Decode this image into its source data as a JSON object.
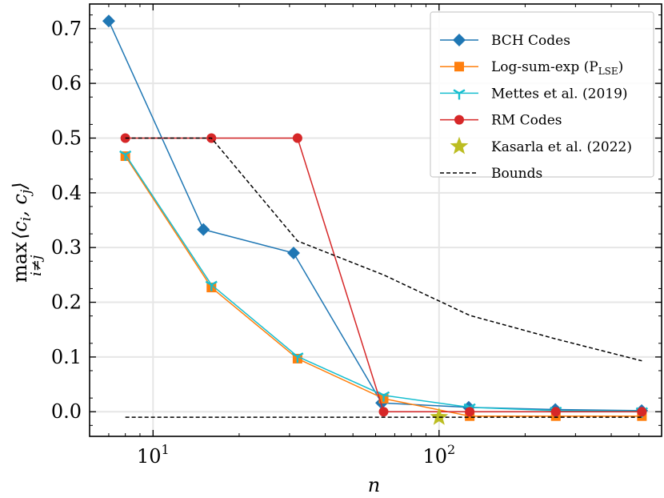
{
  "chart_data": {
    "type": "line",
    "xscale": "log",
    "xlim": [
      6,
      600
    ],
    "ylim": [
      -0.045,
      0.745
    ],
    "xlabel": "n",
    "ylabel": {
      "op": "max",
      "sub": "i≠j",
      "expr": "⟨c",
      "i": "i",
      "sep": ", c",
      "j": "j",
      "close": "⟩"
    },
    "yticks": [
      0.0,
      0.1,
      0.2,
      0.3,
      0.4,
      0.5,
      0.6,
      0.7
    ],
    "ytick_labels": [
      "0.0",
      "0.1",
      "0.2",
      "0.3",
      "0.4",
      "0.5",
      "0.6",
      "0.7"
    ],
    "xticks": [
      {
        "value": 10,
        "base": "10",
        "exp": "1"
      },
      {
        "value": 100,
        "base": "10",
        "exp": "2"
      }
    ],
    "grid": true,
    "legend_position": "top-right",
    "series": [
      {
        "name": "BCH Codes",
        "color": "#1f77b4",
        "marker": "diamond",
        "x": [
          7,
          15,
          31,
          63,
          127,
          255,
          511
        ],
        "y": [
          0.714,
          0.333,
          0.29,
          0.016,
          0.008,
          0.004,
          0.002
        ]
      },
      {
        "name": "Log-sum-exp (P",
        "name_sub": "LSE",
        "name_suffix": ")",
        "color": "#ff7f0e",
        "marker": "square",
        "x": [
          8,
          16,
          32,
          64,
          128,
          256,
          512
        ],
        "y": [
          0.467,
          0.227,
          0.097,
          0.024,
          -0.008,
          -0.008,
          -0.008
        ]
      },
      {
        "name": "Mettes et al. (2019)",
        "color": "#17becf",
        "marker": "tri",
        "x": [
          8,
          16,
          32,
          64,
          128,
          256,
          512
        ],
        "y": [
          0.47,
          0.232,
          0.101,
          0.03,
          0.008,
          0.002,
          0.001
        ]
      },
      {
        "name": "RM Codes",
        "color": "#d62728",
        "marker": "circle",
        "x": [
          8,
          16,
          32,
          64,
          128,
          256,
          512
        ],
        "y": [
          0.5,
          0.5,
          0.5,
          0.0,
          0.0,
          0.0,
          0.0
        ]
      },
      {
        "name": "Kasarla et al. (2022)",
        "color": "#bcbd22",
        "marker": "star",
        "x": [
          100
        ],
        "y": [
          -0.01
        ]
      },
      {
        "name": "Bounds",
        "color": "#000000",
        "marker": "none",
        "dashed": true,
        "segments": [
          {
            "x": [
              8,
              16,
              32,
              64,
              128,
              256,
              512
            ],
            "y": [
              0.5,
              0.5,
              0.312,
              0.25,
              0.176,
              0.133,
              0.093
            ]
          },
          {
            "x": [
              8,
              512
            ],
            "y": [
              -0.01,
              -0.01
            ]
          }
        ]
      }
    ]
  }
}
